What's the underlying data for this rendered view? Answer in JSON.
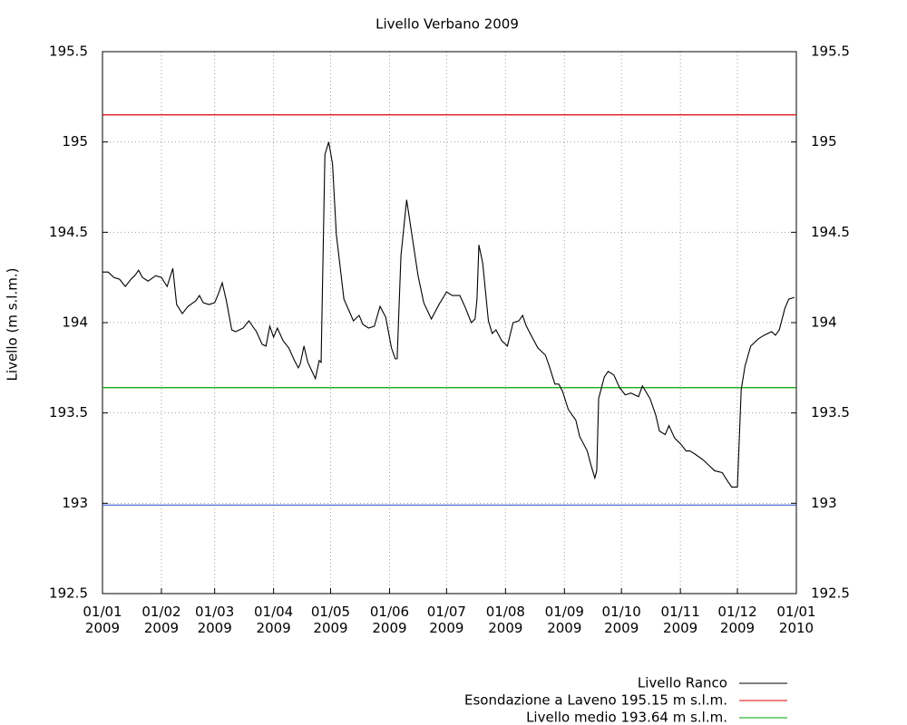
{
  "chart_data": {
    "type": "line",
    "title": "Livello Verbano 2009",
    "y_label": "Livello (m s.l.m.)",
    "x": [
      "2009-01-01",
      "2009-01-04",
      "2009-01-07",
      "2009-01-10",
      "2009-01-13",
      "2009-01-16",
      "2009-01-18",
      "2009-01-20",
      "2009-01-22",
      "2009-01-25",
      "2009-01-29",
      "2009-02-01",
      "2009-02-04",
      "2009-02-07",
      "2009-02-09",
      "2009-02-12",
      "2009-02-15",
      "2009-02-19",
      "2009-02-21",
      "2009-02-23",
      "2009-02-26",
      "2009-03-01",
      "2009-03-03",
      "2009-03-05",
      "2009-03-07",
      "2009-03-10",
      "2009-03-12",
      "2009-03-16",
      "2009-03-19",
      "2009-03-23",
      "2009-03-26",
      "2009-03-28",
      "2009-03-30",
      "2009-04-01",
      "2009-04-03",
      "2009-04-06",
      "2009-04-09",
      "2009-04-12",
      "2009-04-14",
      "2009-04-15",
      "2009-04-17",
      "2009-04-19",
      "2009-04-23",
      "2009-04-25",
      "2009-04-26",
      "2009-04-28",
      "2009-04-30",
      "2009-05-02",
      "2009-05-04",
      "2009-05-08",
      "2009-05-13",
      "2009-05-16",
      "2009-05-18",
      "2009-05-21",
      "2009-05-24",
      "2009-05-27",
      "2009-05-30",
      "2009-06-02",
      "2009-06-04",
      "2009-06-05",
      "2009-06-07",
      "2009-06-10",
      "2009-06-13",
      "2009-06-16",
      "2009-06-19",
      "2009-06-23",
      "2009-06-27",
      "2009-07-01",
      "2009-07-04",
      "2009-07-08",
      "2009-07-11",
      "2009-07-14",
      "2009-07-16",
      "2009-07-17",
      "2009-07-18",
      "2009-07-20",
      "2009-07-23",
      "2009-07-25",
      "2009-07-27",
      "2009-07-30",
      "2009-08-02",
      "2009-08-05",
      "2009-08-08",
      "2009-08-10",
      "2009-08-12",
      "2009-08-15",
      "2009-08-18",
      "2009-08-22",
      "2009-08-24",
      "2009-08-27",
      "2009-08-29",
      "2009-08-31",
      "2009-09-03",
      "2009-09-05",
      "2009-09-07",
      "2009-09-09",
      "2009-09-13",
      "2009-09-15",
      "2009-09-17",
      "2009-09-18",
      "2009-09-19",
      "2009-09-22",
      "2009-09-24",
      "2009-09-27",
      "2009-09-30",
      "2009-10-03",
      "2009-10-06",
      "2009-10-10",
      "2009-10-12",
      "2009-10-16",
      "2009-10-19",
      "2009-10-21",
      "2009-10-24",
      "2009-10-26",
      "2009-10-29",
      "2009-11-01",
      "2009-11-04",
      "2009-11-06",
      "2009-11-09",
      "2009-11-13",
      "2009-11-16",
      "2009-11-19",
      "2009-11-23",
      "2009-11-26",
      "2009-11-28",
      "2009-12-01",
      "2009-12-03",
      "2009-12-05",
      "2009-12-08",
      "2009-12-12",
      "2009-12-15",
      "2009-12-19",
      "2009-12-21",
      "2009-12-23",
      "2009-12-26",
      "2009-12-28",
      "2009-12-31"
    ],
    "series": [
      {
        "name": "Livello Ranco",
        "color": "#000000",
        "values": [
          194.28,
          194.28,
          194.25,
          194.24,
          194.2,
          194.24,
          194.26,
          194.29,
          194.25,
          194.23,
          194.26,
          194.25,
          194.2,
          194.3,
          194.1,
          194.05,
          194.09,
          194.12,
          194.15,
          194.11,
          194.1,
          194.11,
          194.16,
          194.22,
          194.13,
          193.96,
          193.95,
          193.97,
          194.01,
          193.95,
          193.88,
          193.87,
          193.98,
          193.92,
          193.97,
          193.9,
          193.86,
          193.79,
          193.75,
          193.77,
          193.87,
          193.78,
          193.69,
          193.79,
          193.78,
          194.93,
          195.0,
          194.88,
          194.49,
          194.13,
          194.01,
          194.04,
          193.99,
          193.97,
          193.98,
          194.09,
          194.03,
          193.86,
          193.8,
          193.8,
          194.37,
          194.68,
          194.47,
          194.26,
          194.11,
          194.02,
          194.1,
          194.17,
          194.15,
          194.15,
          194.08,
          194.0,
          194.02,
          194.13,
          194.43,
          194.33,
          194.01,
          193.94,
          193.96,
          193.9,
          193.87,
          194.0,
          194.01,
          194.04,
          193.98,
          193.92,
          193.86,
          193.82,
          193.76,
          193.66,
          193.66,
          193.62,
          193.52,
          193.49,
          193.46,
          193.37,
          193.29,
          193.21,
          193.14,
          193.18,
          193.58,
          193.7,
          193.73,
          193.71,
          193.64,
          193.6,
          193.61,
          193.59,
          193.65,
          193.58,
          193.49,
          193.4,
          193.38,
          193.43,
          193.36,
          193.33,
          193.29,
          193.29,
          193.27,
          193.24,
          193.21,
          193.18,
          193.17,
          193.12,
          193.09,
          193.09,
          193.63,
          193.76,
          193.87,
          193.91,
          193.93,
          193.95,
          193.93,
          193.96,
          194.08,
          194.13,
          194.14
        ]
      }
    ],
    "hlines": [
      {
        "name": "Esondazione a Laveno 195.15 m s.l.m.",
        "color": "#e00000",
        "value": 195.15
      },
      {
        "name": "Livello medio 193.64 m s.l.m.",
        "color": "#00a000",
        "value": 193.64
      },
      {
        "color": "#3a5fcd",
        "value": 192.99
      }
    ],
    "xlim": [
      "2009-01-01",
      "2010-01-01"
    ],
    "xticks": [
      {
        "value": "2009-01-01",
        "label": "01/01 2009"
      },
      {
        "value": "2009-02-01",
        "label": "01/02 2009"
      },
      {
        "value": "2009-03-01",
        "label": "01/03 2009"
      },
      {
        "value": "2009-04-01",
        "label": "01/04 2009"
      },
      {
        "value": "2009-05-01",
        "label": "01/05 2009"
      },
      {
        "value": "2009-06-01",
        "label": "01/06 2009"
      },
      {
        "value": "2009-07-01",
        "label": "01/07 2009"
      },
      {
        "value": "2009-08-01",
        "label": "01/08 2009"
      },
      {
        "value": "2009-09-01",
        "label": "01/09 2009"
      },
      {
        "value": "2009-10-01",
        "label": "01/10 2009"
      },
      {
        "value": "2009-11-01",
        "label": "01/11 2009"
      },
      {
        "value": "2009-12-01",
        "label": "01/12 2009"
      },
      {
        "value": "2010-01-01",
        "label": "01/01 2010"
      }
    ],
    "ylim": [
      192.5,
      195.5
    ],
    "yticks": [
      192.5,
      193,
      193.5,
      194,
      194.5,
      195,
      195.5
    ],
    "y2lim": [
      192.5,
      195.5
    ],
    "y2ticks": [
      192.5,
      193,
      193.5,
      194,
      194.5,
      195,
      195.5
    ],
    "grid": true
  }
}
